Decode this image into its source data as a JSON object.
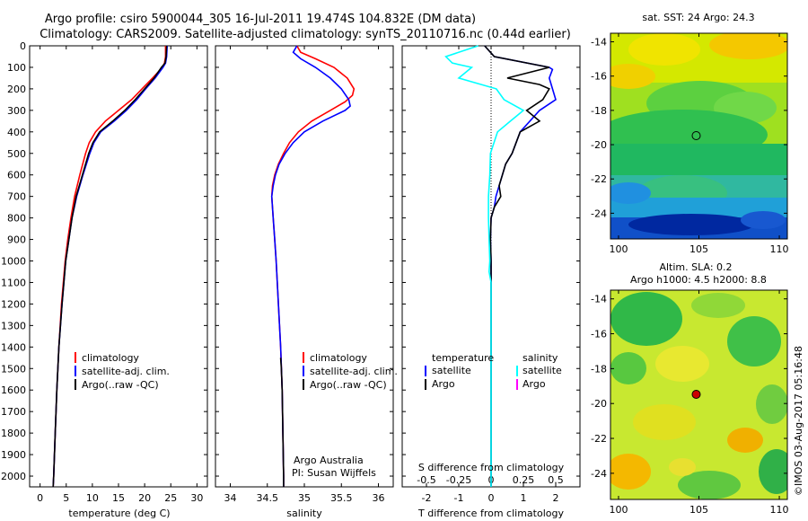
{
  "header": {
    "line1": "Argo profile: csiro 5900044_305 16-Jul-2011 19.474S 104.832E (DM data)",
    "line2": "Climatology: CARS2009. Satellite-adjusted climatology: synTS_20110716.nc (0.44d earlier)"
  },
  "stamp": "©IMOS 03-Aug-2017 05:16:48",
  "colors": {
    "climatology": "#ff0000",
    "satellite": "#0000ff",
    "argo": "#000000",
    "sat_salinity": "#00ffff",
    "argo_salinity": "#ff00ff"
  },
  "chart_data": [
    {
      "type": "line",
      "name": "temperature",
      "xlabel": "temperature (deg C)",
      "ylabel": "",
      "xlim": [
        -2,
        32
      ],
      "ylim": [
        2050,
        0
      ],
      "xticks": [
        "0",
        "5",
        "10",
        "15",
        "20",
        "25",
        "30"
      ],
      "xtick_values": [
        0,
        5,
        10,
        15,
        20,
        25,
        30
      ],
      "yticks": [
        "0",
        "100",
        "200",
        "300",
        "400",
        "500",
        "600",
        "700",
        "800",
        "900",
        "1000",
        "1100",
        "1200",
        "1300",
        "1400",
        "1500",
        "1600",
        "1700",
        "1800",
        "1900",
        "2000"
      ],
      "ytick_values": [
        0,
        100,
        200,
        300,
        400,
        500,
        600,
        700,
        800,
        900,
        1000,
        1100,
        1200,
        1300,
        1400,
        1500,
        1600,
        1700,
        1800,
        1900,
        2000
      ],
      "legend": [
        "climatology",
        "satellite-adj. clim.",
        "Argo(..raw -QC)"
      ],
      "series": [
        {
          "name": "climatology",
          "color": "#ff0000",
          "depth": [
            0,
            50,
            80,
            100,
            150,
            200,
            250,
            300,
            350,
            400,
            450,
            500,
            600,
            700,
            800,
            900,
            1000,
            1200,
            1400,
            1600,
            1800,
            2000,
            2050
          ],
          "values": [
            24.0,
            24.0,
            23.8,
            23.4,
            21.5,
            19.5,
            17.5,
            15.0,
            12.5,
            10.6,
            9.4,
            8.7,
            7.6,
            6.6,
            5.9,
            5.3,
            4.8,
            4.1,
            3.6,
            3.2,
            2.9,
            2.6,
            2.5
          ]
        },
        {
          "name": "satellite-adj. clim.",
          "color": "#0000ff",
          "depth": [
            0,
            50,
            80,
            100,
            150,
            200,
            250,
            300,
            350,
            400,
            450,
            500,
            600,
            700,
            800,
            900,
            1000,
            1200,
            1400,
            1600,
            1800,
            2000,
            2050
          ],
          "values": [
            24.3,
            24.2,
            24.0,
            23.5,
            22.0,
            20.2,
            18.5,
            16.5,
            14.2,
            11.6,
            10.3,
            9.5,
            8.2,
            7.0,
            6.1,
            5.5,
            4.9,
            4.2,
            3.6,
            3.2,
            2.9,
            2.6,
            2.5
          ]
        },
        {
          "name": "Argo(..raw -QC)",
          "color": "#000000",
          "depth": [
            0,
            50,
            80,
            100,
            150,
            200,
            250,
            300,
            350,
            400,
            450,
            500,
            600,
            700,
            800,
            900,
            1000,
            1200,
            1400,
            1600,
            1800,
            2000,
            2050
          ],
          "values": [
            24.2,
            24.1,
            23.9,
            23.2,
            21.8,
            20.0,
            18.2,
            16.2,
            13.9,
            11.4,
            10.1,
            9.3,
            8.1,
            6.9,
            6.1,
            5.5,
            4.9,
            4.2,
            3.6,
            3.2,
            2.9,
            2.6,
            2.5
          ]
        }
      ]
    },
    {
      "type": "line",
      "name": "salinity",
      "xlabel": "salinity",
      "ylabel": "",
      "xlim": [
        33.8,
        36.2
      ],
      "ylim": [
        2050,
        0
      ],
      "xticks": [
        "34",
        "34.5",
        "35",
        "35.5",
        "36"
      ],
      "xtick_values": [
        34,
        34.5,
        35,
        35.5,
        36
      ],
      "legend": [
        "climatology",
        "satellite-adj. clim.",
        "Argo(..raw -QC)"
      ],
      "annotation": [
        "Argo Australia",
        "PI: Susan Wijffels"
      ],
      "series": [
        {
          "name": "climatology",
          "color": "#ff0000",
          "depth": [
            0,
            30,
            60,
            100,
            150,
            200,
            230,
            260,
            300,
            350,
            400,
            450,
            500,
            550,
            600,
            650,
            700,
            800,
            900,
            1000,
            1200,
            1400,
            1600,
            1800,
            2000,
            2050
          ],
          "values": [
            34.9,
            34.95,
            35.15,
            35.4,
            35.58,
            35.67,
            35.65,
            35.55,
            35.35,
            35.1,
            34.92,
            34.8,
            34.72,
            34.65,
            34.6,
            34.57,
            34.56,
            34.58,
            34.6,
            34.62,
            34.65,
            34.68,
            34.7,
            34.71,
            34.72,
            34.72
          ]
        },
        {
          "name": "satellite-adj. clim.",
          "color": "#0000ff",
          "depth": [
            0,
            30,
            60,
            100,
            150,
            200,
            250,
            280,
            300,
            350,
            400,
            450,
            500,
            550,
            600,
            650,
            700,
            800,
            900,
            1000,
            1200,
            1400,
            1600,
            1800,
            2000,
            2050
          ],
          "values": [
            34.9,
            34.85,
            34.95,
            35.15,
            35.35,
            35.5,
            35.6,
            35.62,
            35.55,
            35.25,
            35.0,
            34.85,
            34.74,
            34.66,
            34.61,
            34.58,
            34.56,
            34.58,
            34.6,
            34.62,
            34.65,
            34.68,
            34.7,
            34.71,
            34.72,
            34.72
          ]
        },
        {
          "name": "Argo(..raw -QC)",
          "color": "#000000",
          "depth": [
            1450,
            1500,
            1600,
            1700,
            1800,
            1900,
            2000,
            2050
          ],
          "values": [
            34.68,
            34.69,
            34.7,
            34.705,
            34.71,
            34.715,
            34.72,
            34.72
          ]
        }
      ]
    },
    {
      "type": "line",
      "name": "difference from climatology",
      "xlabel": "T difference from climatology",
      "xlabel2": "S difference from climatology",
      "xlim": [
        -2.75,
        2.75
      ],
      "ylim": [
        2050,
        0
      ],
      "xticks": [
        "-2",
        "-1",
        "0",
        "1",
        "2"
      ],
      "xtick_values": [
        -2,
        -1,
        0,
        1,
        2
      ],
      "sticks": [
        "-0.5",
        "-0.25",
        "0",
        "0.25",
        "0.5"
      ],
      "stick_values": [
        -0.5,
        -0.25,
        0,
        0.25,
        0.5
      ],
      "legend_headers": [
        "temperature",
        "salinity"
      ],
      "legend_left": [
        "satellite",
        "Argo"
      ],
      "legend_right": [
        "satellite",
        "Argo"
      ],
      "series": [
        {
          "name": "T satellite",
          "color": "#0000ff",
          "depth": [
            0,
            50,
            100,
            110,
            150,
            200,
            250,
            300,
            400,
            500,
            550,
            600,
            650,
            700,
            750,
            800,
            900,
            1000,
            1200,
            1400,
            1600,
            1800,
            2000,
            2050
          ],
          "values": [
            -0.2,
            0.1,
            1.8,
            1.9,
            1.8,
            1.9,
            2.0,
            1.5,
            0.9,
            0.65,
            0.45,
            0.35,
            0.25,
            0.15,
            0.1,
            0.0,
            -0.02,
            0.0,
            0.0,
            0.0,
            0.0,
            0.0,
            0.0,
            0.0
          ]
        },
        {
          "name": "T Argo",
          "color": "#000000",
          "depth": [
            0,
            50,
            100,
            150,
            180,
            200,
            250,
            300,
            350,
            400,
            500,
            550,
            600,
            650,
            700,
            750,
            800,
            900,
            1000,
            1200,
            1400,
            1600,
            1800,
            2000,
            2050
          ],
          "values": [
            -0.2,
            0.1,
            1.8,
            0.5,
            1.5,
            1.8,
            1.6,
            1.1,
            1.5,
            0.9,
            0.65,
            0.45,
            0.35,
            0.25,
            0.3,
            0.1,
            0.0,
            -0.02,
            0.0,
            0.0,
            0.0,
            0.0,
            0.0,
            0.0,
            0.0
          ]
        },
        {
          "name": "S satellite",
          "color": "#00ffff",
          "depth": [
            0,
            50,
            80,
            100,
            150,
            200,
            250,
            300,
            350,
            400,
            500,
            600,
            700,
            800,
            900,
            1000,
            1050,
            1100,
            1200,
            1400,
            1600,
            1800,
            2000,
            2050
          ],
          "values": [
            -0.1,
            -0.35,
            -0.3,
            -0.15,
            -0.25,
            0.04,
            0.1,
            0.25,
            0.15,
            0.05,
            -0.005,
            -0.01,
            -0.02,
            -0.02,
            -0.015,
            -0.01,
            -0.015,
            0.0,
            0.0,
            0.0,
            0.0,
            0.0,
            0.0,
            0.0
          ]
        },
        {
          "name": "S Argo",
          "color": "#ff00ff",
          "depth": [],
          "values": []
        }
      ]
    },
    {
      "type": "heatmap",
      "name": "SST map",
      "title": "sat. SST: 24 Argo: 24.3",
      "xlim": [
        99.5,
        110.5
      ],
      "ylim": [
        -25.5,
        -13.5
      ],
      "xticks": [
        "100",
        "105",
        "110"
      ],
      "xtick_values": [
        100,
        105,
        110
      ],
      "yticks": [
        "-14",
        "-16",
        "-18",
        "-20",
        "-22",
        "-24"
      ],
      "ytick_values": [
        -14,
        -16,
        -18,
        -20,
        -22,
        -24
      ],
      "marker": {
        "lon": 104.832,
        "lat": -19.474,
        "style": "open-circle"
      }
    },
    {
      "type": "heatmap",
      "name": "SLA map",
      "title": "Altim. SLA: 0.2",
      "subtitle": "Argo h1000: 4.5 h2000: 8.8",
      "xlim": [
        99.5,
        110.5
      ],
      "ylim": [
        -25.5,
        -13.5
      ],
      "xticks": [
        "100",
        "105",
        "110"
      ],
      "xtick_values": [
        100,
        105,
        110
      ],
      "yticks": [
        "-14",
        "-16",
        "-18",
        "-20",
        "-22",
        "-24"
      ],
      "ytick_values": [
        -14,
        -16,
        -18,
        -20,
        -22,
        -24
      ],
      "marker": {
        "lon": 104.832,
        "lat": -19.474,
        "style": "filled-red-circle"
      }
    }
  ]
}
